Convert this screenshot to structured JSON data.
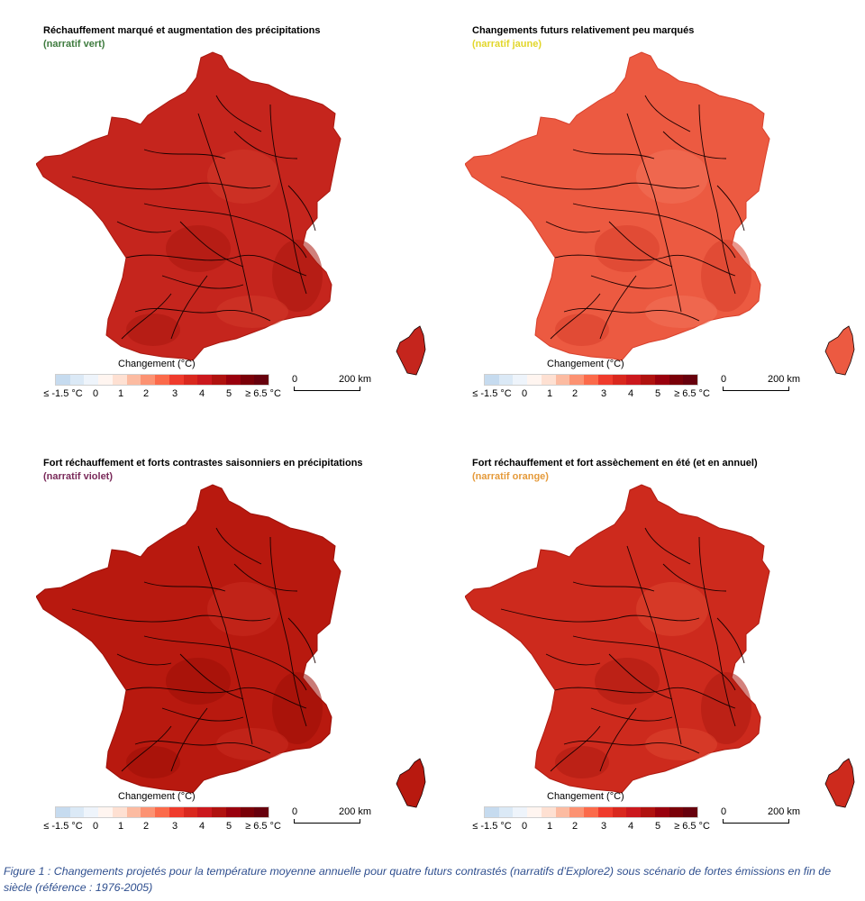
{
  "panels": [
    {
      "title": "Réchauffement marqué et augmentation des précipitations",
      "subtitle": "(narratif vert)",
      "subtitle_color": "#3e7b3e",
      "fill": "#c5251d",
      "fill_dark": "#a9180f",
      "fill_light": "#d23a2a"
    },
    {
      "title": "Changements futurs relativement peu marqués",
      "subtitle": "(narratif jaune)",
      "subtitle_color": "#e2d62a",
      "fill": "#ec5a41",
      "fill_dark": "#d8402c",
      "fill_light": "#f2725a"
    },
    {
      "title": "Fort réchauffement et forts contrastes saisonniers en précipitations",
      "subtitle": "(narratif violet)",
      "subtitle_color": "#7a2a5a",
      "fill": "#b8190f",
      "fill_dark": "#9c0f08",
      "fill_light": "#c92c20"
    },
    {
      "title": "Fort réchauffement et fort assèchement en été (et en annuel)",
      "subtitle": "(narratif orange)",
      "subtitle_color": "#e59a3a",
      "fill": "#cd2a1d",
      "fill_dark": "#ae1a10",
      "fill_light": "#de4530"
    }
  ],
  "legend": {
    "title": "Changement (°C)",
    "ticks": [
      "≤ -1.5 °C",
      "0",
      "1",
      "2",
      "3",
      "4",
      "5",
      "≥ 6.5 °C"
    ],
    "colors": [
      "#c6dbef",
      "#dbe9f6",
      "#eef4fb",
      "#fff5f0",
      "#fee0d2",
      "#fcbba1",
      "#fc9272",
      "#fb6a4a",
      "#ef3b2c",
      "#d9281e",
      "#cb181d",
      "#b0120f",
      "#99000d",
      "#7a0008",
      "#67000d"
    ]
  },
  "scale": {
    "zero": "0",
    "distance": "200 km"
  },
  "caption": "Figure 1 : Changements projetés pour la température moyenne annuelle pour quatre futurs contrastés (narratifs d’Explore2) sous scénario de fortes émissions en fin de siècle (référence : 1976-2005)"
}
